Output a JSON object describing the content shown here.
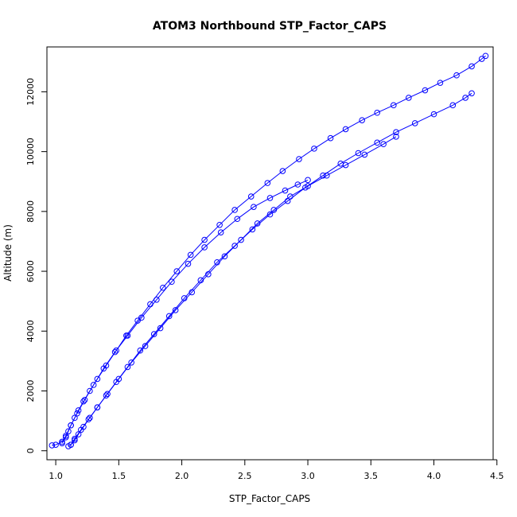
{
  "chart_data": {
    "type": "scatter",
    "title": "ATOM3 Northbound STP_Factor_CAPS",
    "xlabel": "STP_Factor_CAPS",
    "ylabel": "Altitude (m)",
    "xlim": [
      0.93,
      4.47
    ],
    "ylim": [
      -300,
      13500
    ],
    "x_ticks": [
      1.0,
      1.5,
      2.0,
      2.5,
      3.0,
      3.5,
      4.0,
      4.5
    ],
    "x_tick_labels": [
      "1.0",
      "1.5",
      "2.0",
      "2.5",
      "3.0",
      "3.5",
      "4.0",
      "4.5"
    ],
    "y_ticks": [
      0,
      2000,
      4000,
      6000,
      8000,
      10000,
      12000
    ],
    "y_tick_labels": [
      "0",
      "2000",
      "4000",
      "6000",
      "8000",
      "10000",
      "12000"
    ],
    "grid": false,
    "marker": "open-circle",
    "connected": true,
    "color": "#0000ff",
    "series": [
      {
        "x": [
          0.97,
          1.0,
          1.05,
          1.08,
          1.1,
          1.12,
          1.15,
          1.18,
          1.22,
          1.27,
          1.33,
          1.4,
          1.48,
          1.56,
          1.65,
          1.75,
          1.85,
          1.96,
          2.07,
          2.18,
          2.3,
          2.42,
          2.55,
          2.68,
          2.8,
          2.93,
          3.05,
          3.18,
          3.3,
          3.43,
          3.55,
          3.68,
          3.8,
          3.93,
          4.05,
          4.18,
          4.3,
          4.38,
          4.41
        ],
        "y": [
          180,
          200,
          300,
          450,
          650,
          850,
          1100,
          1350,
          1650,
          2000,
          2400,
          2850,
          3350,
          3850,
          4350,
          4900,
          5450,
          6000,
          6550,
          7050,
          7550,
          8050,
          8500,
          8950,
          9350,
          9750,
          10100,
          10450,
          10750,
          11050,
          11300,
          11550,
          11800,
          12050,
          12300,
          12550,
          12850,
          13100,
          13200
        ]
      },
      {
        "x": [
          1.1,
          1.12,
          1.15,
          1.18,
          1.22,
          1.27,
          1.33,
          1.4,
          1.48,
          1.57,
          1.67,
          1.78,
          1.9,
          2.02,
          2.15,
          2.28,
          2.42,
          2.56,
          2.7,
          2.84,
          2.98,
          3.12,
          3.26,
          3.4,
          3.55,
          3.7,
          3.85,
          4.0,
          4.15,
          4.25,
          4.3
        ],
        "y": [
          150,
          200,
          350,
          550,
          800,
          1100,
          1450,
          1850,
          2300,
          2800,
          3350,
          3900,
          4500,
          5100,
          5700,
          6300,
          6850,
          7400,
          7900,
          8350,
          8800,
          9200,
          9600,
          9950,
          10300,
          10650,
          10950,
          11250,
          11550,
          11800,
          11950
        ]
      },
      {
        "x": [
          1.12,
          1.15,
          1.2,
          1.26,
          1.33,
          1.41,
          1.5,
          1.6,
          1.71,
          1.83,
          1.95,
          2.08,
          2.21,
          2.34,
          2.47,
          2.6,
          2.73,
          2.86,
          3.0,
          3.15,
          3.3,
          3.45,
          3.6,
          3.7
        ],
        "y": [
          200,
          400,
          700,
          1050,
          1450,
          1900,
          2400,
          2950,
          3500,
          4100,
          4700,
          5300,
          5900,
          6500,
          7050,
          7600,
          8050,
          8500,
          8850,
          9200,
          9550,
          9900,
          10250,
          10500
        ]
      },
      {
        "x": [
          1.05,
          1.08,
          1.12,
          1.17,
          1.23,
          1.3,
          1.38,
          1.47,
          1.57,
          1.68,
          1.8,
          1.92,
          2.05,
          2.18,
          2.31,
          2.44,
          2.57,
          2.7,
          2.82,
          2.92,
          3.0
        ],
        "y": [
          250,
          500,
          850,
          1250,
          1700,
          2200,
          2750,
          3300,
          3850,
          4450,
          5050,
          5650,
          6250,
          6800,
          7300,
          7750,
          8150,
          8450,
          8700,
          8900,
          9050
        ]
      }
    ]
  }
}
